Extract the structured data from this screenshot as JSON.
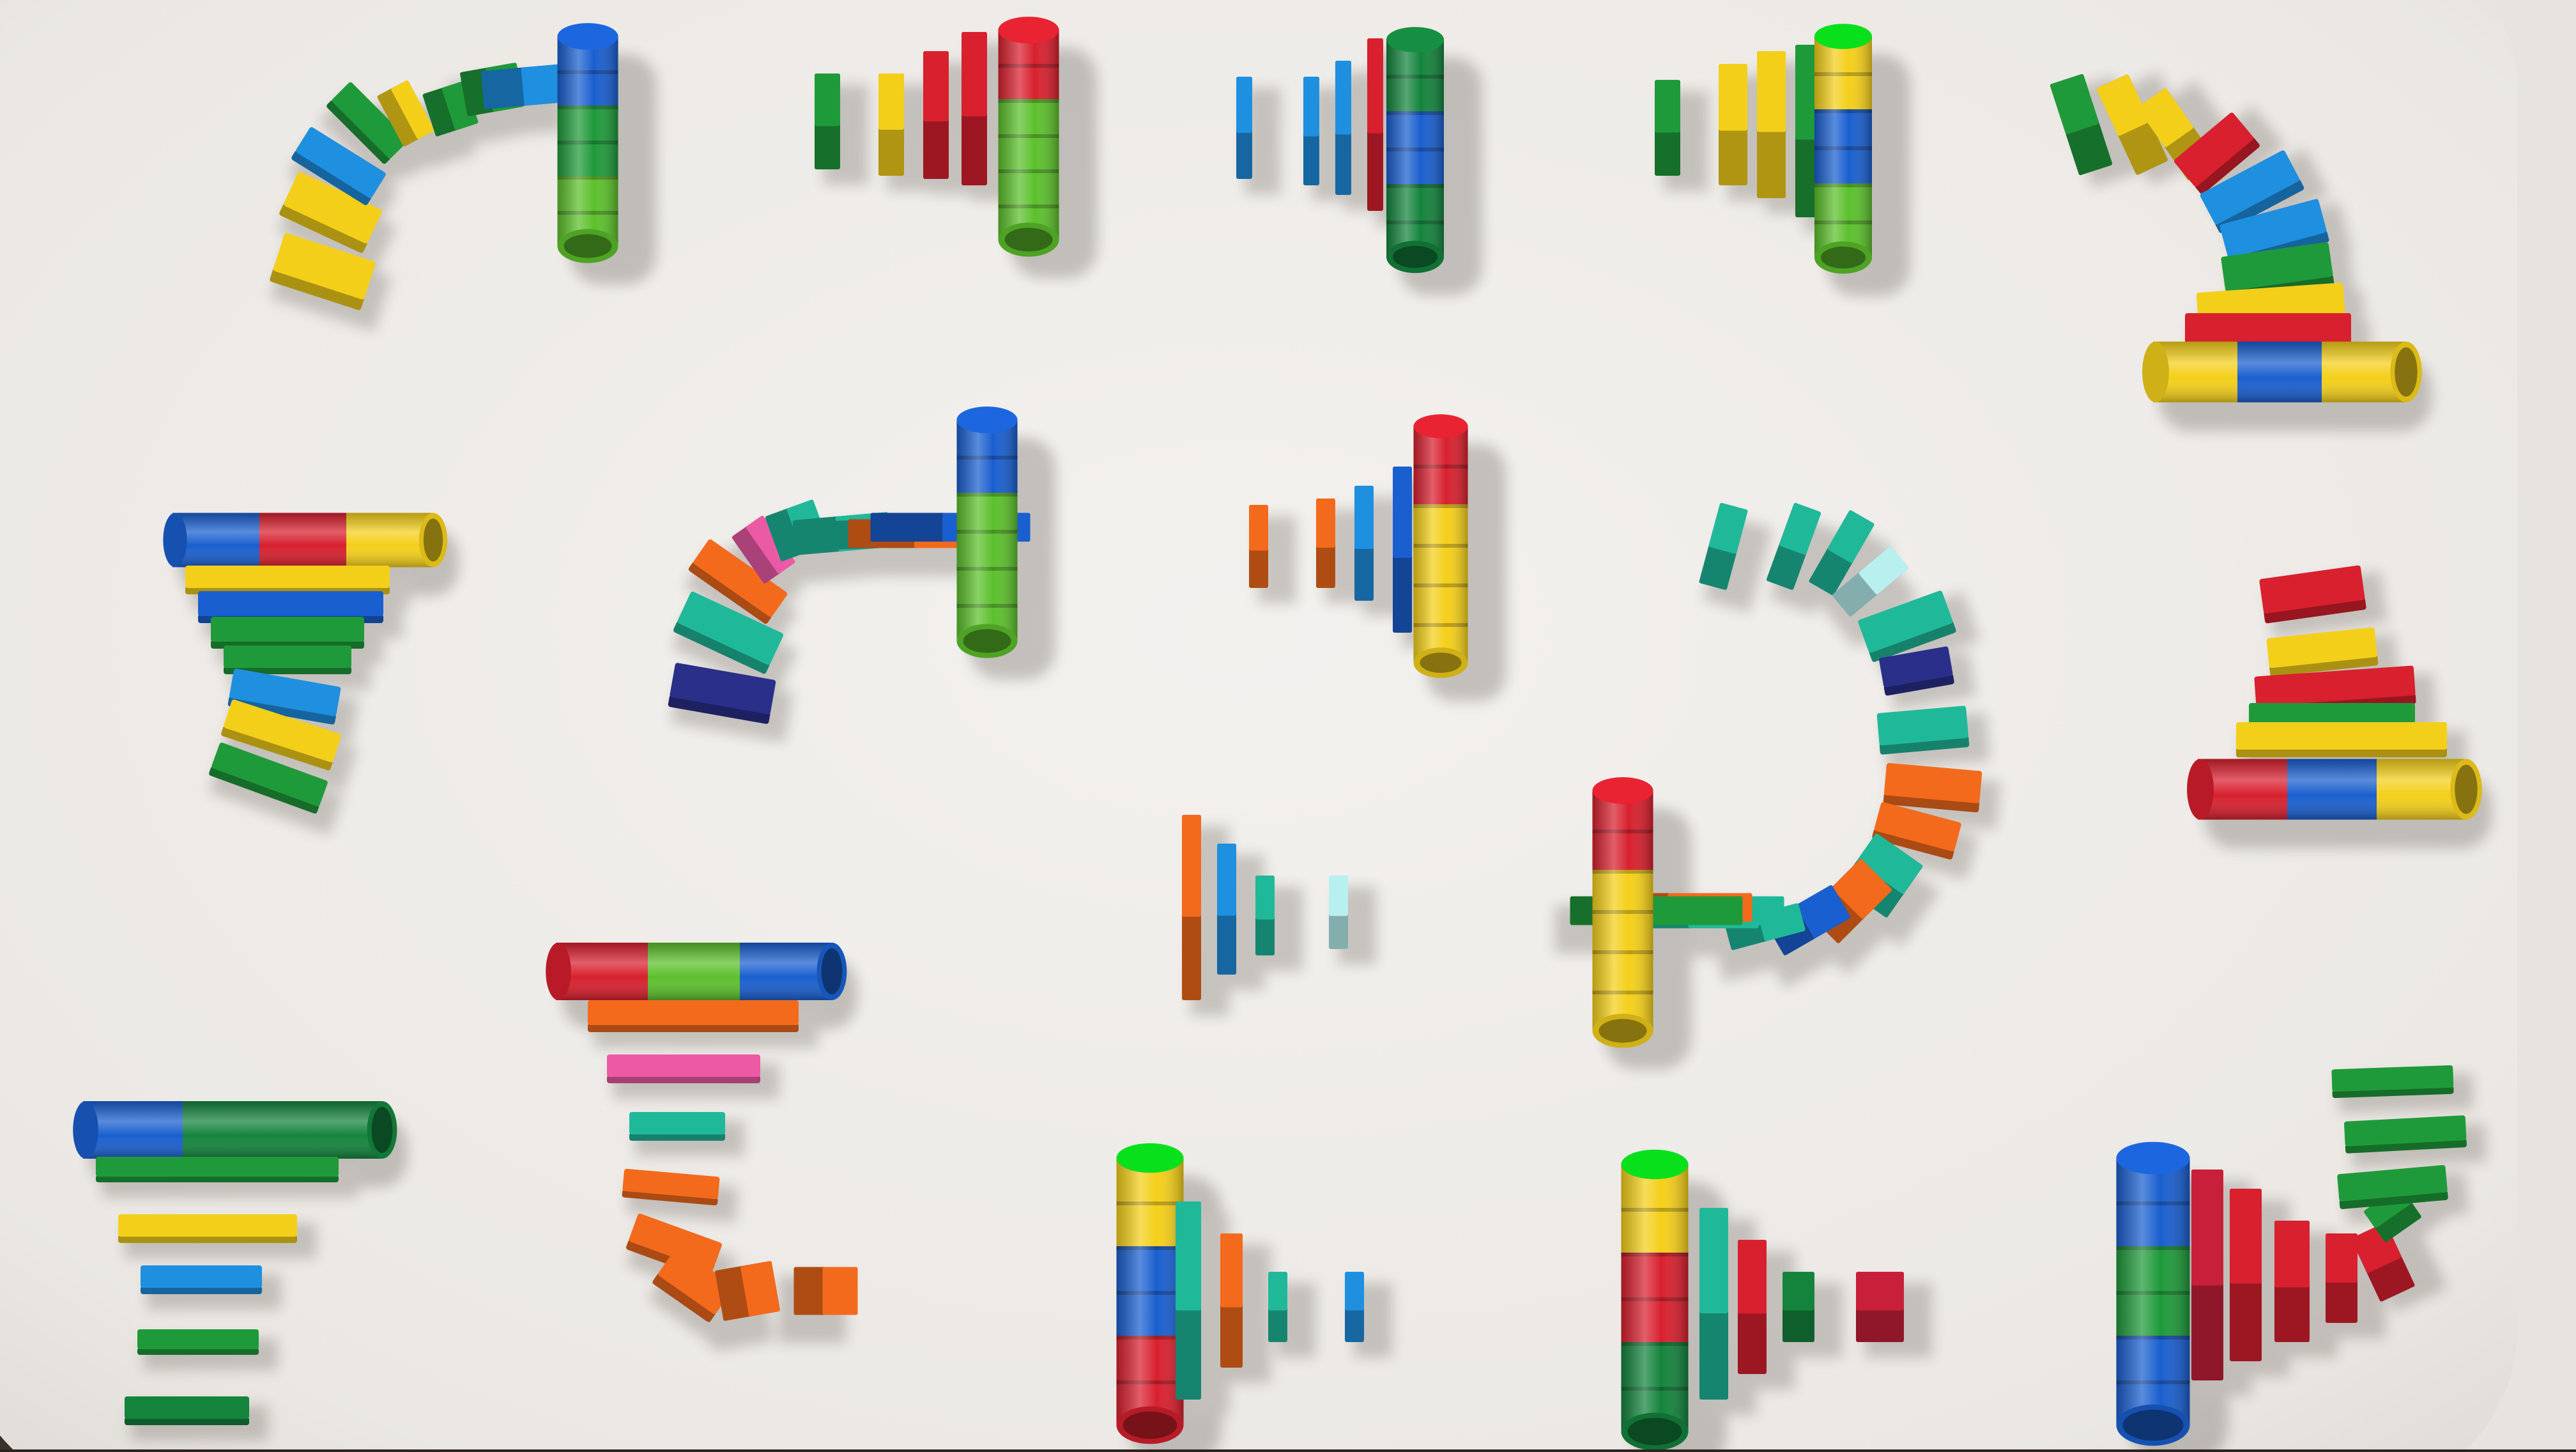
{
  "photo": {
    "caption": "",
    "surface_color": "#efedea",
    "floor_color": "#2e2622",
    "palette": {
      "red": "#d8202e",
      "green": "#1f9a3a",
      "lime": "#5cc02c",
      "darkgreen": "#14843d",
      "yellow": "#f4cf1a",
      "blue": "#1a5fcf",
      "skyblue": "#1f8fe0",
      "orange": "#f36a1c",
      "teal": "#1fb99a",
      "pink": "#ec5aa6",
      "navy": "#2a2f8a",
      "crimson": "#c8203a",
      "aqua": "#b8f0f0"
    },
    "groups": [
      {
        "name": "arc-top-left",
        "tower": "green"
      },
      {
        "name": "row-top-2",
        "tower": "red-lime"
      },
      {
        "name": "row-top-3",
        "tower": "green-blue"
      },
      {
        "name": "row-top-4",
        "tower": "yellow-blue-lime"
      },
      {
        "name": "arc-top-right",
        "tower": "yellow-blue"
      },
      {
        "name": "left-mid-stack",
        "tower": "blue-red-yellow"
      },
      {
        "name": "arc-center-left",
        "tower": "blue-lime"
      },
      {
        "name": "center-row",
        "tower": "red-yellow"
      },
      {
        "name": "spiral-right",
        "tower": "red-yellow"
      },
      {
        "name": "pyramid-right",
        "tower": "red-blue-yellow"
      },
      {
        "name": "center-small",
        "tower": "none"
      },
      {
        "name": "left-lower-stack",
        "tower": "red-green-blue"
      },
      {
        "name": "bottom-left-stack",
        "tower": "blue-green"
      },
      {
        "name": "bottom-row-2",
        "tower": "yellow-blue-red"
      },
      {
        "name": "bottom-row-3",
        "tower": "yellow-red-green"
      },
      {
        "name": "bottom-right",
        "tower": "blue-green-blue"
      }
    ]
  }
}
